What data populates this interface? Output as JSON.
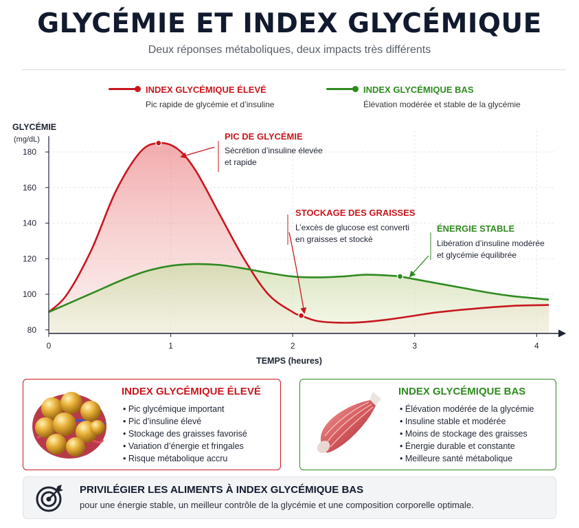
{
  "header": {
    "title": "GLYCÉMIE ET INDEX GLYCÉMIQUE",
    "subtitle": "Deux réponses métaboliques, deux impacts très différents"
  },
  "legend": [
    {
      "title": "INDEX GLYCÉMIQUE ÉLEVÉ",
      "subtitle": "Pic rapide de glycémie et d’insuline",
      "color": "#c8161d"
    },
    {
      "title": "INDEX GLYCÉMIQUE BAS",
      "subtitle": "Élévation modérée et stable de la glycémie",
      "color": "#2e8a1f"
    }
  ],
  "chart_data": {
    "type": "line",
    "ylabel": "GLYCÉMIE",
    "yunit": "(mg/dL)",
    "xlabel": "TEMPS (heures)",
    "xlim": [
      0,
      4.15
    ],
    "ylim": [
      78,
      192
    ],
    "xticks": [
      0,
      1,
      2,
      3,
      4
    ],
    "yticks": [
      80,
      100,
      120,
      140,
      160,
      180
    ],
    "grid": true,
    "series": [
      {
        "name": "INDEX GLYCÉMIQUE ÉLEVÉ",
        "color": "#c8161d",
        "x": [
          0,
          0.15,
          0.35,
          0.55,
          0.75,
          0.9,
          1.05,
          1.2,
          1.4,
          1.6,
          1.8,
          2.0,
          2.07,
          2.2,
          2.4,
          2.6,
          2.8,
          3.0,
          3.2,
          3.5,
          3.8,
          4.1
        ],
        "y": [
          90,
          100,
          125,
          158,
          180,
          185,
          182,
          170,
          145,
          120,
          100,
          90,
          88,
          85,
          84,
          84.5,
          86,
          88,
          90,
          92,
          93.5,
          94
        ]
      },
      {
        "name": "INDEX GLYCÉMIQUE BAS",
        "color": "#2e8a1f",
        "x": [
          0,
          0.2,
          0.4,
          0.6,
          0.8,
          1.0,
          1.2,
          1.4,
          1.6,
          1.8,
          2.0,
          2.2,
          2.4,
          2.6,
          2.8,
          2.88,
          3.0,
          3.2,
          3.4,
          3.6,
          3.8,
          4.1
        ],
        "y": [
          90,
          96,
          102,
          108,
          113,
          116,
          117,
          116.5,
          114.5,
          112,
          110,
          109.5,
          110,
          111,
          110.5,
          110,
          108.5,
          106,
          103.5,
          101,
          99,
          97
        ]
      }
    ],
    "markers": [
      {
        "series": 0,
        "x": 0.9,
        "y": 185
      },
      {
        "series": 0,
        "x": 2.07,
        "y": 88
      },
      {
        "series": 1,
        "x": 2.88,
        "y": 110
      }
    ],
    "annotations": [
      {
        "title": "PIC DE GLYCÉMIE",
        "text": [
          "Sécrétion d’insuline élevée",
          "et rapide"
        ],
        "color": "#c8161d"
      },
      {
        "title": "STOCKAGE DES GRAISSES",
        "text": [
          "L’excès de glucose est converti",
          "en graisses et stocké"
        ],
        "color": "#c8161d"
      },
      {
        "title": "ÉNERGIE STABLE",
        "text": [
          "Libération d’insuline modérée",
          "et glycémie équilibrée"
        ],
        "color": "#2e8a1f"
      }
    ]
  },
  "cards": {
    "high": {
      "title": "INDEX GLYCÉMIQUE ÉLEVÉ",
      "items": [
        "Pic glycémique important",
        "Pic d’insuline élevé",
        "Stockage des graisses favorisé",
        "Variation d’énergie et fringales",
        "Risque métabolique accru"
      ],
      "image": "fat-cells-image"
    },
    "low": {
      "title": "INDEX GLYCÉMIQUE BAS",
      "items": [
        "Élévation modérée de la glycémie",
        "Insuline stable et modérée",
        "Moins de stockage des graisses",
        "Énergie durable et constante",
        "Meilleure santé métabolique"
      ],
      "image": "muscle-image"
    }
  },
  "banner": {
    "icon": "target-icon",
    "title": "PRIVILÉGIER LES ALIMENTS À INDEX GLYCÉMIQUE BAS",
    "subtitle": "pour une énergie stable, un meilleur contrôle de la glycémie et une composition corporelle optimale."
  }
}
